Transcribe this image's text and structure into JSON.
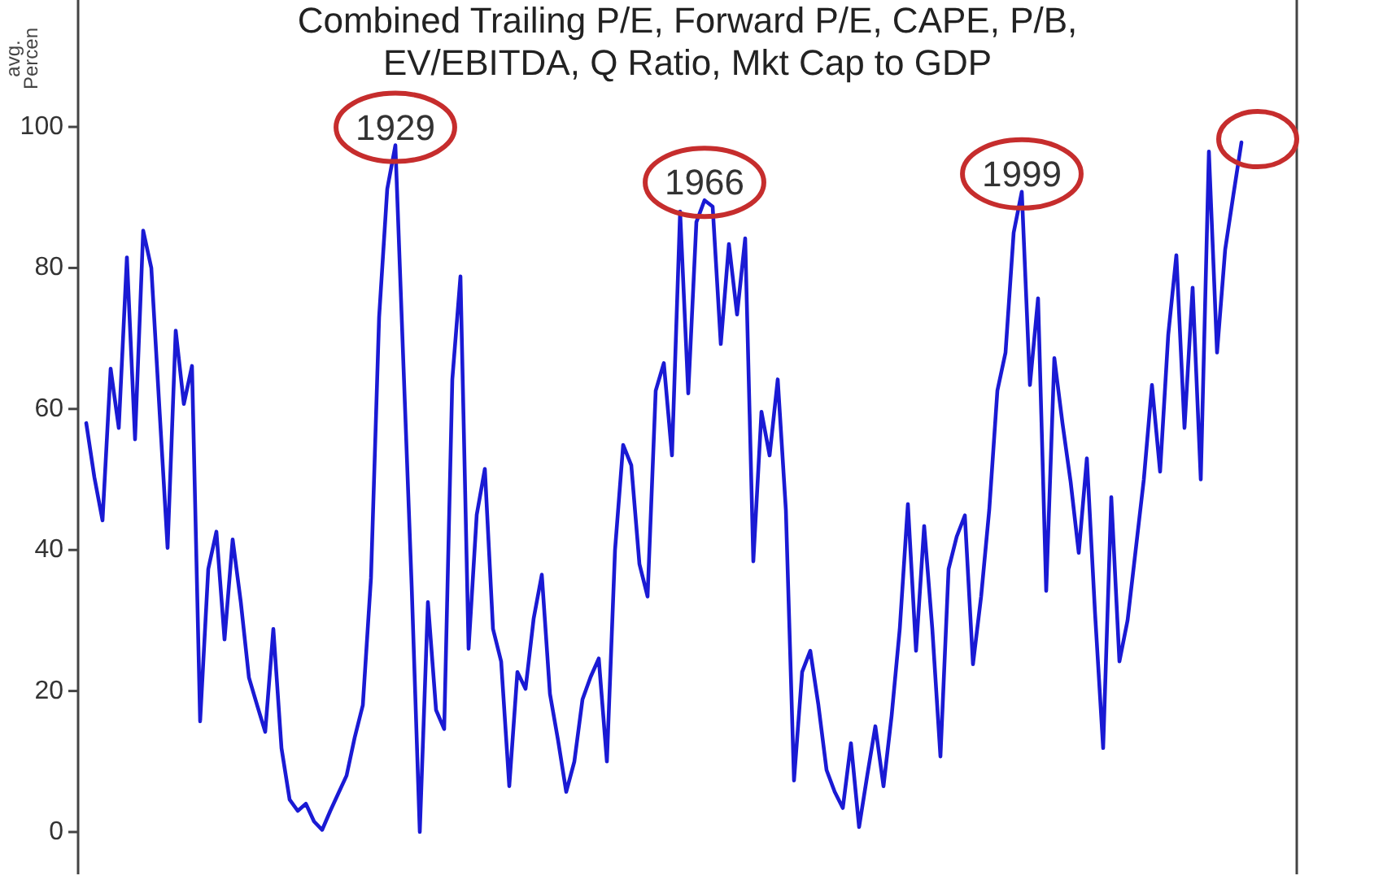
{
  "chart_data": {
    "type": "line",
    "title": "Combined Trailing P/E, Forward P/E, CAPE, P/B, EV/EBITDA, Q Ratio, Mkt Cap to GDP",
    "ylabel": "avg. Percen",
    "categories": [
      null,
      null,
      null,
      null,
      null,
      null,
      null,
      null,
      null,
      null,
      null,
      null,
      null,
      null,
      null,
      null,
      null,
      null,
      null,
      null,
      null,
      null,
      null,
      null,
      null,
      null,
      null,
      null,
      null,
      null,
      null,
      null,
      null,
      null,
      null,
      null,
      null,
      null,
      null,
      null,
      null,
      null,
      null,
      null,
      null,
      null,
      null,
      null,
      null,
      null,
      null,
      null,
      null,
      null,
      null,
      null,
      null,
      null,
      null,
      null,
      null,
      null,
      null,
      null,
      null,
      null,
      null,
      null,
      null,
      null,
      null,
      null,
      null,
      null,
      null,
      null,
      null,
      null,
      null,
      null,
      null,
      null,
      null,
      null,
      null,
      null,
      null,
      null,
      null,
      null,
      null,
      null,
      null,
      null,
      null,
      null,
      null,
      null,
      null,
      null,
      null,
      null,
      null,
      null,
      null,
      null,
      null,
      null,
      null,
      null,
      null,
      null,
      null,
      null,
      null,
      null,
      null,
      null,
      null,
      null,
      null,
      null,
      null,
      null,
      null,
      null,
      null,
      null,
      null,
      null,
      null,
      null,
      null,
      null,
      null,
      null,
      null,
      null,
      null,
      null,
      null,
      null,
      null
    ],
    "series": [
      {
        "color": "#1a1ad4",
        "values": [
          58,
          50.3,
          44.2,
          65.7,
          57.3,
          81.5,
          55.7,
          85.3,
          80,
          60,
          40.3,
          71.1,
          60.7,
          66.1,
          15.7,
          37.3,
          42.6,
          27.3,
          41.5,
          32.6,
          21.9,
          18,
          14.2,
          28.8,
          11.9,
          4.6,
          3,
          4,
          1.5,
          0.3,
          3,
          5.5,
          8,
          13.4,
          18,
          36,
          73,
          91.2,
          97.4,
          66,
          35,
          0,
          32.6,
          17.3,
          14.6,
          64.2,
          78.8,
          26,
          45,
          51.5,
          28.8,
          24.2,
          6.5,
          22.7,
          20.3,
          30.3,
          36.5,
          19.6,
          13,
          5.7,
          10,
          18.8,
          22,
          24.6,
          10,
          40,
          54.9,
          52,
          38,
          33.4,
          62.6,
          66.5,
          53.4,
          88,
          62.2,
          86.5,
          89.6,
          88.7,
          69.2,
          83.4,
          73.4,
          84.2,
          38.4,
          59.6,
          53.4,
          64.2,
          45.7,
          7.3,
          22.7,
          25.7,
          18,
          8.8,
          5.7,
          3.4,
          12.6,
          0.7,
          8,
          15,
          6.5,
          16.5,
          28.8,
          46.5,
          25.7,
          43.4,
          28.8,
          10.7,
          37.3,
          41.9,
          44.9,
          23.8,
          33.4,
          45.7,
          62.6,
          68,
          85,
          90.8,
          63.4,
          75.7,
          34.2,
          67.2,
          58,
          49.7,
          39.6,
          53,
          31.1,
          11.9,
          47.5,
          24.2,
          30,
          40,
          50,
          63.4,
          51.1,
          70.5,
          81.8,
          57.3,
          77.2,
          50,
          96.5,
          68,
          82.6,
          90.3,
          97.8
        ]
      }
    ],
    "ylim": [
      -6,
      118
    ],
    "yticks": [
      0,
      20,
      40,
      60,
      80,
      100
    ],
    "tick_labels": "y",
    "annotations": [
      {
        "text": "1929",
        "y": 97.4
      },
      {
        "text": "1966",
        "y": 89.6
      },
      {
        "text": "1999",
        "y": 90.8
      }
    ]
  }
}
